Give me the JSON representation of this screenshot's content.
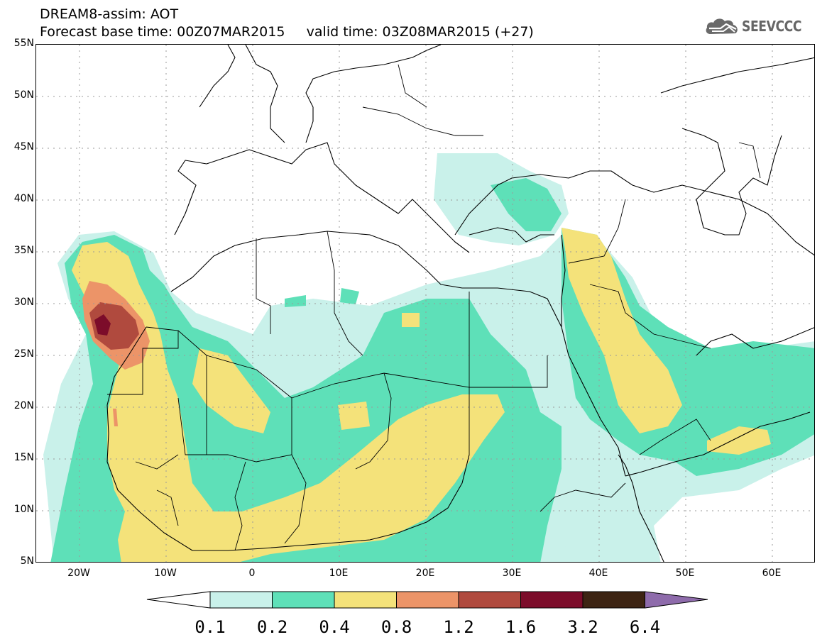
{
  "title": {
    "line1": "DREAM8-assim: AOT",
    "line2": "Forecast base time: 00Z07MAR2015     valid time: 03Z08MAR2015 (+27)"
  },
  "logo": {
    "text": "SEEVCCC",
    "icon": "cloud-icon",
    "color": "#666666"
  },
  "map": {
    "lat_labels": [
      "55N",
      "50N",
      "45N",
      "40N",
      "35N",
      "30N",
      "25N",
      "20N",
      "15N",
      "10N",
      "5N"
    ],
    "lon_labels": [
      "20W",
      "10W",
      "0",
      "10E",
      "20E",
      "30E",
      "40E",
      "50E",
      "60E"
    ],
    "lat_range": [
      5,
      55
    ],
    "lon_range": [
      -25,
      65
    ],
    "gridlines": "dotted"
  },
  "colorbar": {
    "levels": [
      "0.1",
      "0.2",
      "0.4",
      "0.8",
      "1.2",
      "1.6",
      "3.2",
      "6.4"
    ],
    "colors": [
      "#c9f1ea",
      "#5ee0b8",
      "#f4e27a",
      "#ec9468",
      "#b04a3e",
      "#7c0c2a",
      "#3d2413",
      "#8e6bab"
    ],
    "under_color": "#ffffff"
  }
}
